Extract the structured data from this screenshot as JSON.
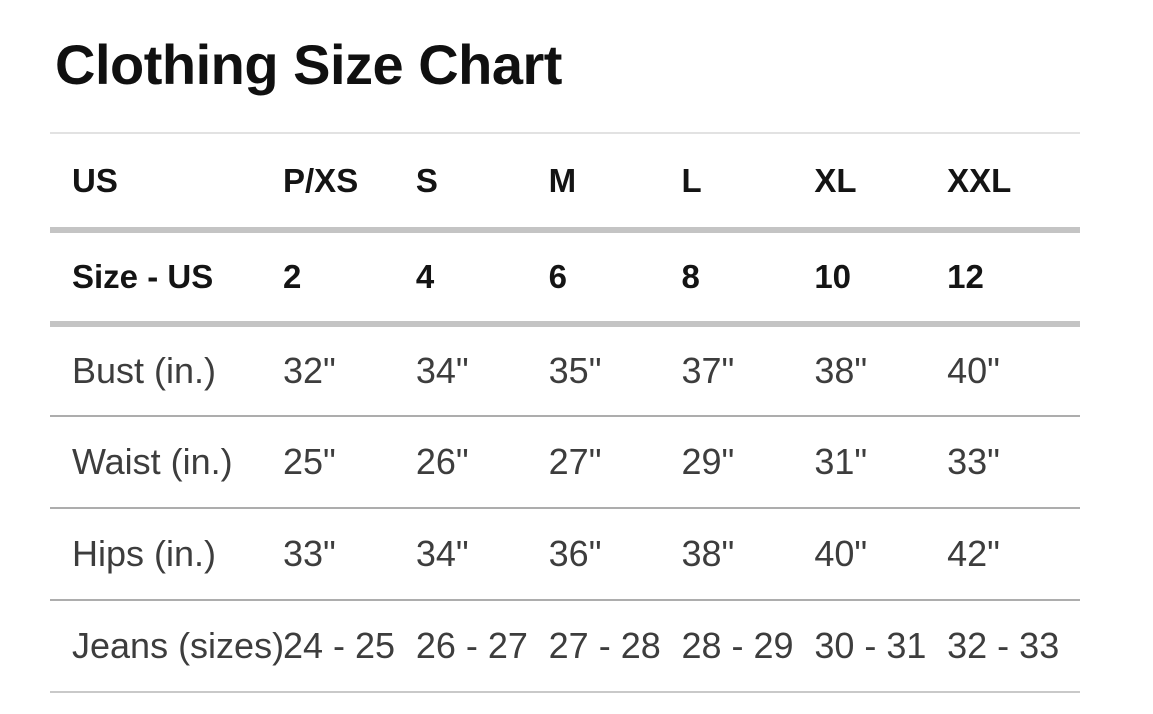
{
  "page": {
    "title": "Clothing Size Chart"
  },
  "chart_data": {
    "type": "table",
    "title": "Clothing Size Chart",
    "columns": [
      "US",
      "P/XS",
      "S",
      "M",
      "L",
      "XL",
      "XXL"
    ],
    "rows": [
      {
        "label": "Size - US",
        "values": [
          "2",
          "4",
          "6",
          "8",
          "10",
          "12"
        ]
      },
      {
        "label": "Bust (in.)",
        "values": [
          "32\"",
          "34\"",
          "35\"",
          "37\"",
          "38\"",
          "40\""
        ]
      },
      {
        "label": "Waist (in.)",
        "values": [
          "25\"",
          "26\"",
          "27\"",
          "29\"",
          "31\"",
          "33\""
        ]
      },
      {
        "label": "Hips (in.)",
        "values": [
          "33\"",
          "34\"",
          "36\"",
          "38\"",
          "40\"",
          "42\""
        ]
      },
      {
        "label": "Jeans (sizes)",
        "values": [
          "24 - 25",
          "26 - 27",
          "27 - 28",
          "28 - 29",
          "30 - 31",
          "32 - 33"
        ]
      }
    ]
  },
  "colors": {
    "background": "#ffffff",
    "title_text": "#101010",
    "header_text": "#141414",
    "body_text": "#3d3d3d",
    "top_rule": "#e2e2e2",
    "heavy_rule": "#c4c4c4",
    "row_rule": "#adadad",
    "bottom_rule": "#c9c9c9"
  }
}
